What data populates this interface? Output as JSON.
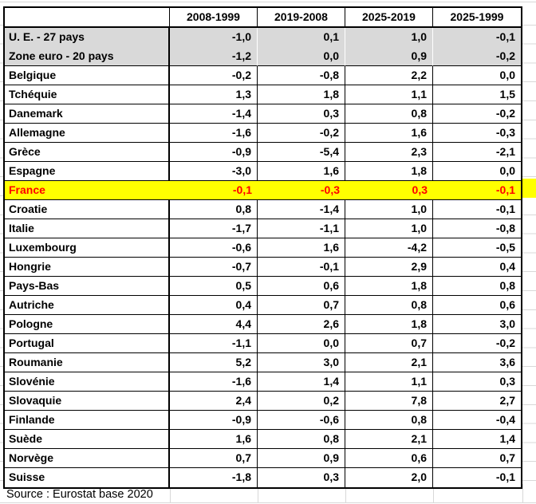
{
  "chart_data": {
    "type": "table",
    "columns": [
      "2008-1999",
      "2019-2008",
      "2025-2019",
      "2025-1999"
    ],
    "rows": [
      {
        "label": "U. E. - 27 pays",
        "values": [
          -1.0,
          0.1,
          1.0,
          -0.1
        ],
        "style": "aggregate"
      },
      {
        "label": "Zone euro - 20 pays",
        "values": [
          -1.2,
          0.0,
          0.9,
          -0.2
        ],
        "style": "aggregate"
      },
      {
        "label": "Belgique",
        "values": [
          -0.2,
          -0.8,
          2.2,
          0.0
        ],
        "style": "normal"
      },
      {
        "label": "Tchéquie",
        "values": [
          1.3,
          1.8,
          1.1,
          1.5
        ],
        "style": "normal"
      },
      {
        "label": "Danemark",
        "values": [
          -1.4,
          0.3,
          0.8,
          -0.2
        ],
        "style": "normal"
      },
      {
        "label": "Allemagne",
        "values": [
          -1.6,
          -0.2,
          1.6,
          -0.3
        ],
        "style": "normal"
      },
      {
        "label": "Grèce",
        "values": [
          -0.9,
          -5.4,
          2.3,
          -2.1
        ],
        "style": "normal"
      },
      {
        "label": "Espagne",
        "values": [
          -3.0,
          1.6,
          1.8,
          0.0
        ],
        "style": "normal"
      },
      {
        "label": "France",
        "values": [
          -0.1,
          -0.3,
          0.3,
          -0.1
        ],
        "style": "highlight"
      },
      {
        "label": "Croatie",
        "values": [
          0.8,
          -1.4,
          1.0,
          -0.1
        ],
        "style": "normal"
      },
      {
        "label": "Italie",
        "values": [
          -1.7,
          -1.1,
          1.0,
          -0.8
        ],
        "style": "normal"
      },
      {
        "label": "Luxembourg",
        "values": [
          -0.6,
          1.6,
          -4.2,
          -0.5
        ],
        "style": "normal"
      },
      {
        "label": "Hongrie",
        "values": [
          -0.7,
          -0.1,
          2.9,
          0.4
        ],
        "style": "normal"
      },
      {
        "label": "Pays-Bas",
        "values": [
          0.5,
          0.6,
          1.8,
          0.8
        ],
        "style": "normal"
      },
      {
        "label": "Autriche",
        "values": [
          0.4,
          0.7,
          0.8,
          0.6
        ],
        "style": "normal"
      },
      {
        "label": "Pologne",
        "values": [
          4.4,
          2.6,
          1.8,
          3.0
        ],
        "style": "normal"
      },
      {
        "label": "Portugal",
        "values": [
          -1.1,
          0.0,
          0.7,
          -0.2
        ],
        "style": "normal"
      },
      {
        "label": "Roumanie",
        "values": [
          5.2,
          3.0,
          2.1,
          3.6
        ],
        "style": "normal"
      },
      {
        "label": "Slovénie",
        "values": [
          -1.6,
          1.4,
          1.1,
          0.3
        ],
        "style": "normal"
      },
      {
        "label": "Slovaquie",
        "values": [
          2.4,
          0.2,
          7.8,
          2.7
        ],
        "style": "normal"
      },
      {
        "label": "Finlande",
        "values": [
          -0.9,
          -0.6,
          0.8,
          -0.4
        ],
        "style": "normal"
      },
      {
        "label": "Suède",
        "values": [
          1.6,
          0.8,
          2.1,
          1.4
        ],
        "style": "normal"
      },
      {
        "label": "Norvège",
        "values": [
          0.7,
          0.9,
          0.6,
          0.7
        ],
        "style": "normal"
      },
      {
        "label": "Suisse",
        "values": [
          -1.8,
          0.3,
          2.0,
          -0.1
        ],
        "style": "normal"
      }
    ],
    "highlighted_row": "France",
    "number_format": "one decimal, comma as decimal separator",
    "note": "Source : Eurostat base 2020"
  },
  "source_note": "Source : Eurostat base 2020",
  "colors": {
    "aggregate_bg": "#d9d9d9",
    "highlight_bg": "#ffff00",
    "highlight_text": "#ff0000",
    "table_border": "#000000",
    "faint_grid": "#d8d8d8"
  }
}
